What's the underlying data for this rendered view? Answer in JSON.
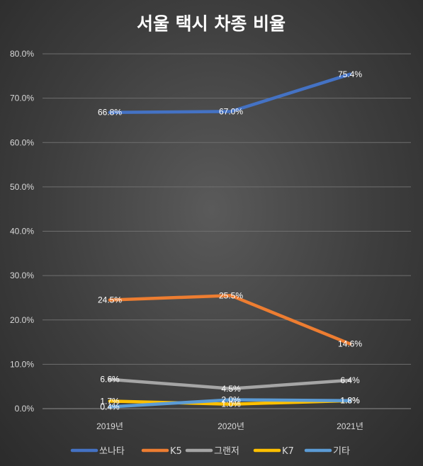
{
  "chart_data": {
    "type": "line",
    "title": "서울 택시 차종 비율",
    "categories": [
      "2019년",
      "2020년",
      "2021년"
    ],
    "ylim": [
      0,
      80
    ],
    "yticks": [
      "0.0%",
      "10.0%",
      "20.0%",
      "30.0%",
      "40.0%",
      "50.0%",
      "60.0%",
      "70.0%",
      "80.0%"
    ],
    "grid": true,
    "legend_position": "bottom",
    "series": [
      {
        "name": "쏘나타",
        "values": [
          66.8,
          67.0,
          75.4
        ],
        "labels": [
          "66.8%",
          "67.0%",
          "75.4%"
        ],
        "color": "#4472c4",
        "label_color": "#ffffff"
      },
      {
        "name": "K5",
        "values": [
          24.5,
          25.5,
          14.6
        ],
        "labels": [
          "24.5%",
          "25.5%",
          "14.6%"
        ],
        "color": "#ed7d31",
        "label_color": "#ffffff"
      },
      {
        "name": "그랜저",
        "values": [
          6.6,
          4.5,
          6.4
        ],
        "labels": [
          "6.6%",
          "4.5%",
          "6.4%"
        ],
        "color": "#a5a5a5",
        "label_color": "#ffffff"
      },
      {
        "name": "K7",
        "values": [
          1.7,
          1.0,
          1.8
        ],
        "labels": [
          "1.7%",
          "1.0%",
          "1.8%"
        ],
        "color": "#ffc000",
        "label_color": "#ffffff"
      },
      {
        "name": "기타",
        "values": [
          0.4,
          2.0,
          1.8
        ],
        "labels": [
          "0.4%",
          "2.0%",
          "1.8%"
        ],
        "color": "#5b9bd5",
        "label_color": "#ffffff"
      }
    ]
  }
}
